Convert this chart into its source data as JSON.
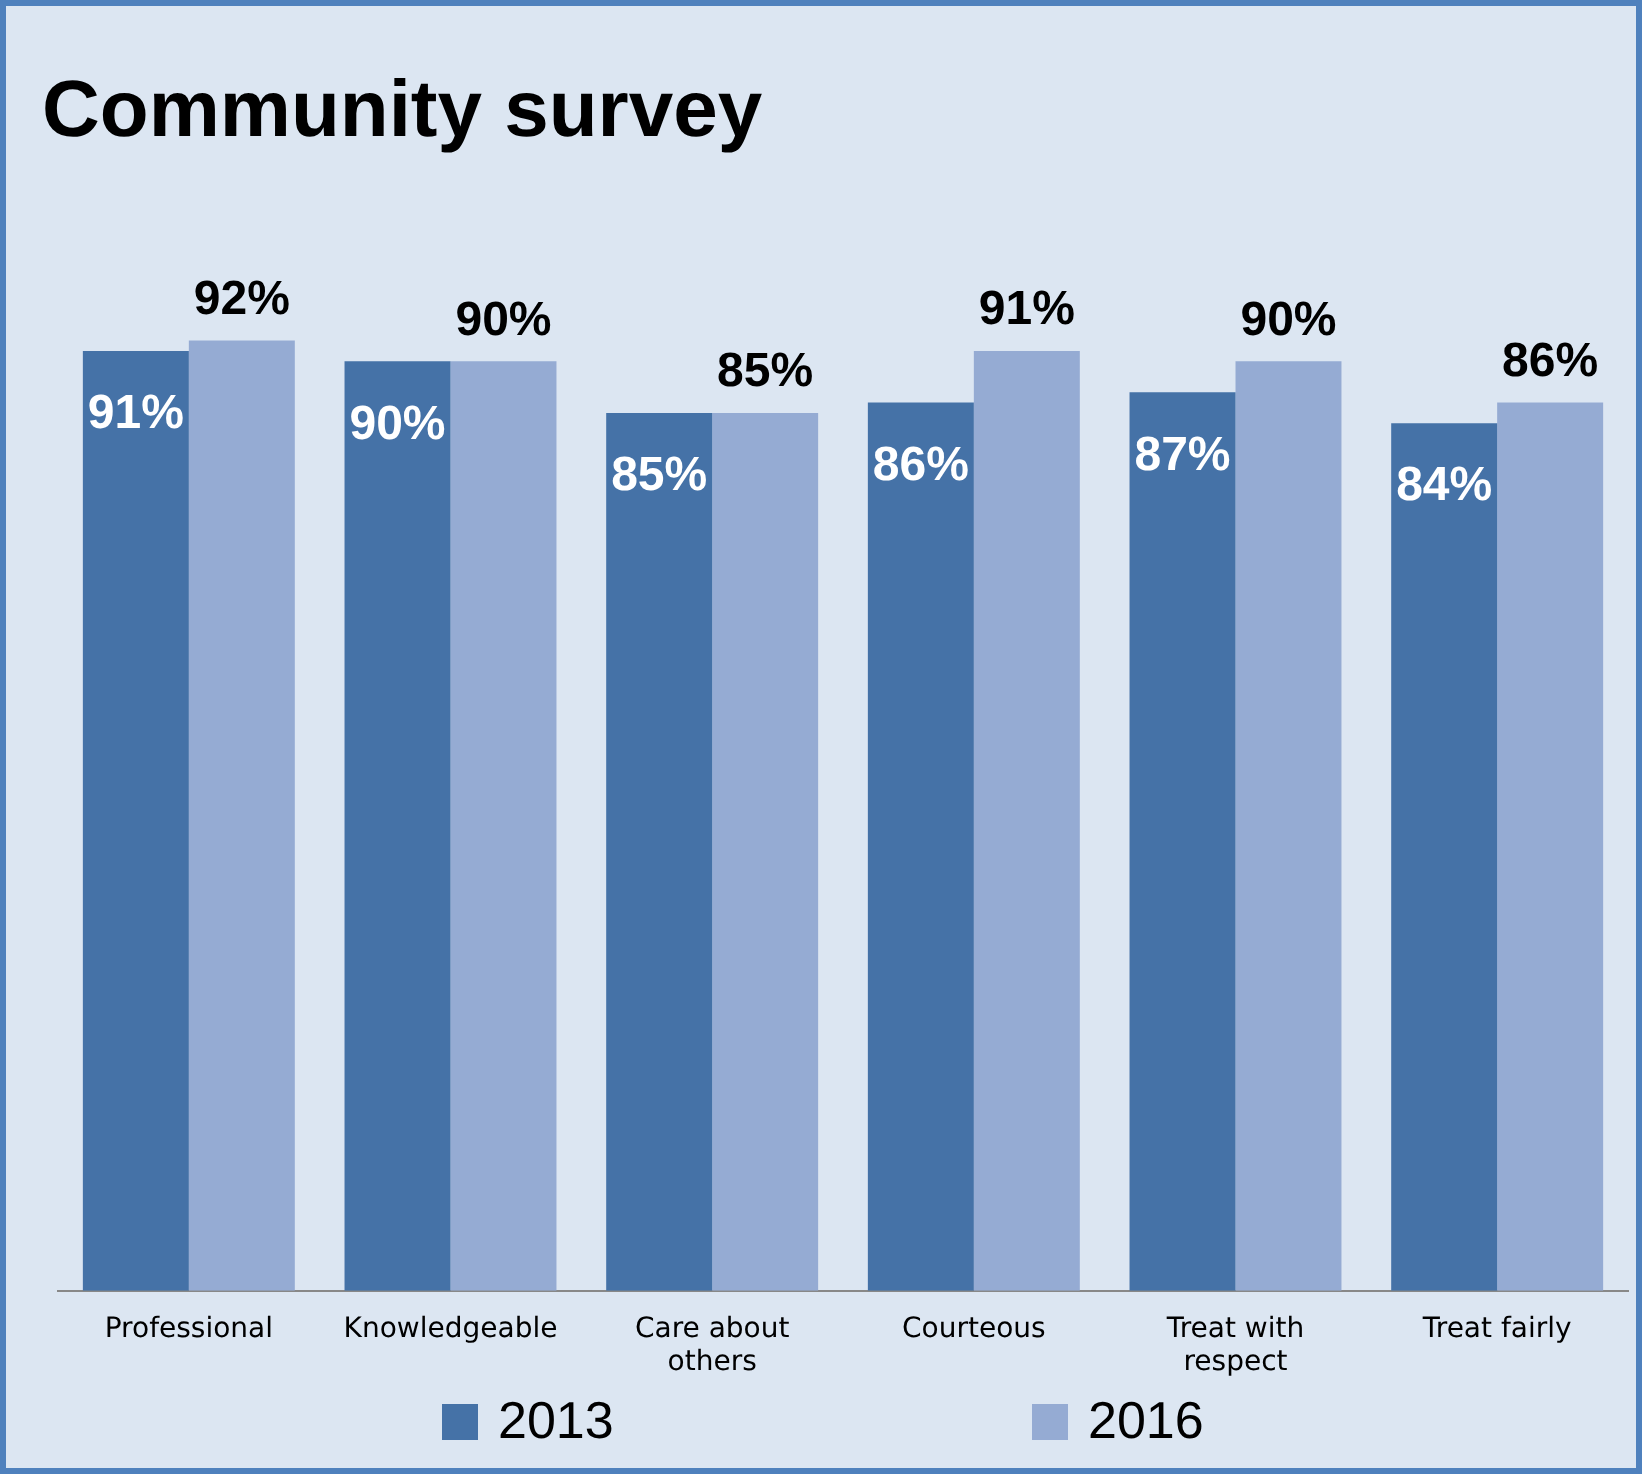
{
  "chart_data": {
    "type": "bar",
    "title": "Community survey",
    "categories": [
      "Professional",
      "Knowledgeable",
      "Care about others",
      "Courteous",
      "Treat with respect",
      "Treat fairly"
    ],
    "series": [
      {
        "name": "2013",
        "color": "#4572a7",
        "values": [
          91,
          90,
          85,
          86,
          87,
          84
        ],
        "value_labels": [
          "91%",
          "90%",
          "85%",
          "86%",
          "87%",
          "84%"
        ]
      },
      {
        "name": "2016",
        "color": "#95abd3",
        "values": [
          92,
          90,
          85,
          91,
          90,
          86
        ],
        "value_labels": [
          "92%",
          "90%",
          "85%",
          "91%",
          "90%",
          "86%"
        ]
      }
    ],
    "tick_labels": "x",
    "grid": false,
    "legend": "bottom"
  }
}
